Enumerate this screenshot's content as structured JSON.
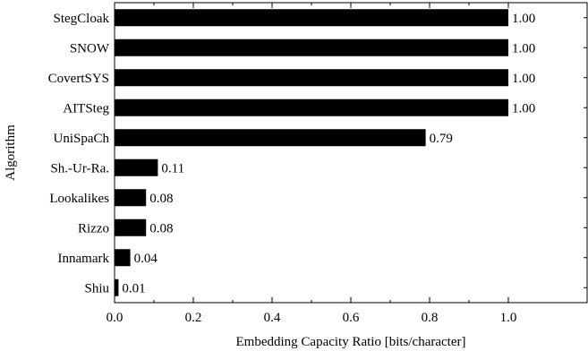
{
  "chart_data": {
    "type": "bar",
    "orientation": "horizontal",
    "categories": [
      "StegCloak",
      "SNOW",
      "CovertSYS",
      "AITSteg",
      "UniSpaCh",
      "Sh.-Ur-Ra.",
      "Lookalikes",
      "Rizzo",
      "Innamark",
      "Shiu"
    ],
    "values": [
      1.0,
      1.0,
      1.0,
      1.0,
      0.79,
      0.11,
      0.08,
      0.08,
      0.04,
      0.01
    ],
    "value_labels": [
      "1.00",
      "1.00",
      "1.00",
      "1.00",
      "0.79",
      "0.11",
      "0.08",
      "0.08",
      "0.04",
      "0.01"
    ],
    "title": "",
    "xlabel": "Embedding Capacity Ratio [bits/character]",
    "ylabel": "Algorithm",
    "xlim": [
      0,
      1.2
    ],
    "xticks": [
      0.0,
      0.2,
      0.4,
      0.6,
      0.8,
      1.0
    ],
    "xtick_labels": [
      "0.0",
      "0.2",
      "0.4",
      "0.6",
      "0.8",
      "1.0"
    ],
    "grid": false,
    "legend": "none",
    "bar_color": "#000000"
  }
}
